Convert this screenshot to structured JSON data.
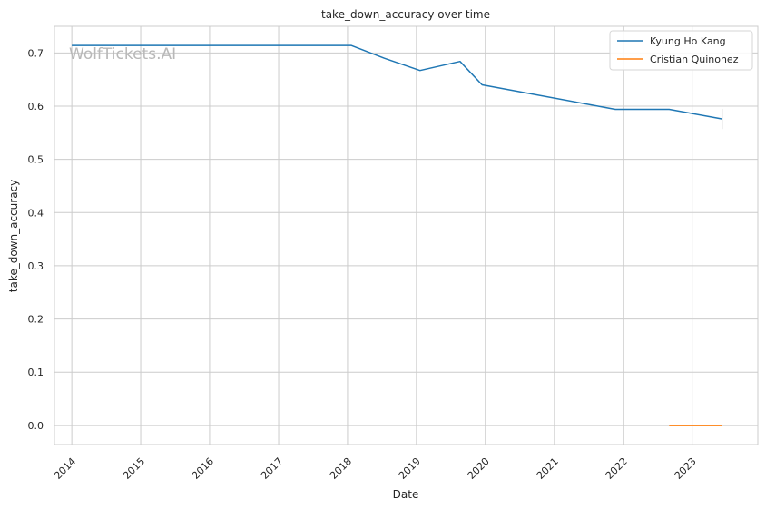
{
  "chart_data": {
    "type": "line",
    "title": "take_down_accuracy over time",
    "xlabel": "Date",
    "ylabel": "take_down_accuracy",
    "watermark": "WolfTickets.AI",
    "x_ticks": [
      "2014",
      "2015",
      "2016",
      "2017",
      "2018",
      "2019",
      "2020",
      "2021",
      "2022",
      "2023"
    ],
    "y_ticks": [
      "0.0",
      "0.1",
      "0.2",
      "0.3",
      "0.4",
      "0.5",
      "0.6",
      "0.7"
    ],
    "xlim": [
      "2013-10-01",
      "2023-12-15"
    ],
    "ylim": [
      -0.036,
      0.75
    ],
    "grid": true,
    "legend_position": "top-right",
    "series": [
      {
        "name": "Kyung Ho Kang",
        "color": "#1f77b4",
        "points": [
          {
            "x": "2014-01-01",
            "y": 0.714
          },
          {
            "x": "2018-01-20",
            "y": 0.714
          },
          {
            "x": "2018-07-15",
            "y": 0.69
          },
          {
            "x": "2019-01-20",
            "y": 0.667
          },
          {
            "x": "2019-08-20",
            "y": 0.684
          },
          {
            "x": "2019-12-15",
            "y": 0.64
          },
          {
            "x": "2021-11-20",
            "y": 0.594
          },
          {
            "x": "2022-09-01",
            "y": 0.594
          },
          {
            "x": "2023-06-10",
            "y": 0.576
          }
        ]
      },
      {
        "name": "Cristian Quinonez",
        "color": "#ff7f0e",
        "points": [
          {
            "x": "2022-09-01",
            "y": 0.0
          },
          {
            "x": "2023-06-10",
            "y": 0.0
          }
        ]
      }
    ]
  }
}
